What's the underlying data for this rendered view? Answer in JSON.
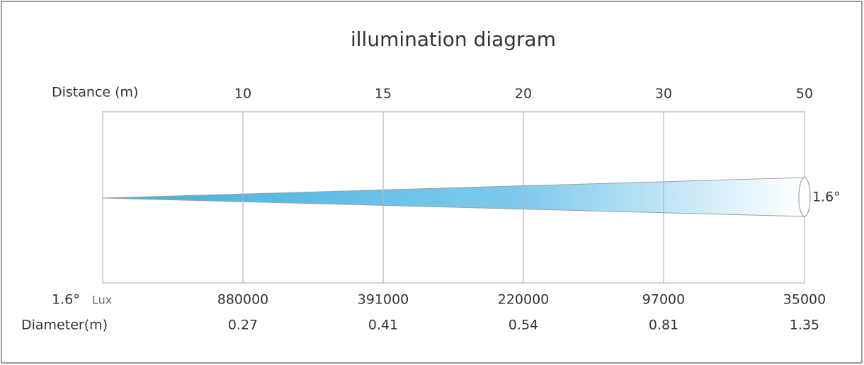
{
  "title": "illumination diagram",
  "distance_label": "Distance (m)",
  "distances": [
    10,
    15,
    20,
    30,
    50
  ],
  "beam_angle": "1.6°",
  "lux_angle": "1.6°",
  "lux_label": "Lux",
  "lux": [
    880000,
    391000,
    220000,
    97000,
    35000
  ],
  "diameter_label": "Diameter(m)",
  "diameters": [
    0.27,
    0.41,
    0.54,
    0.81,
    1.35
  ]
}
